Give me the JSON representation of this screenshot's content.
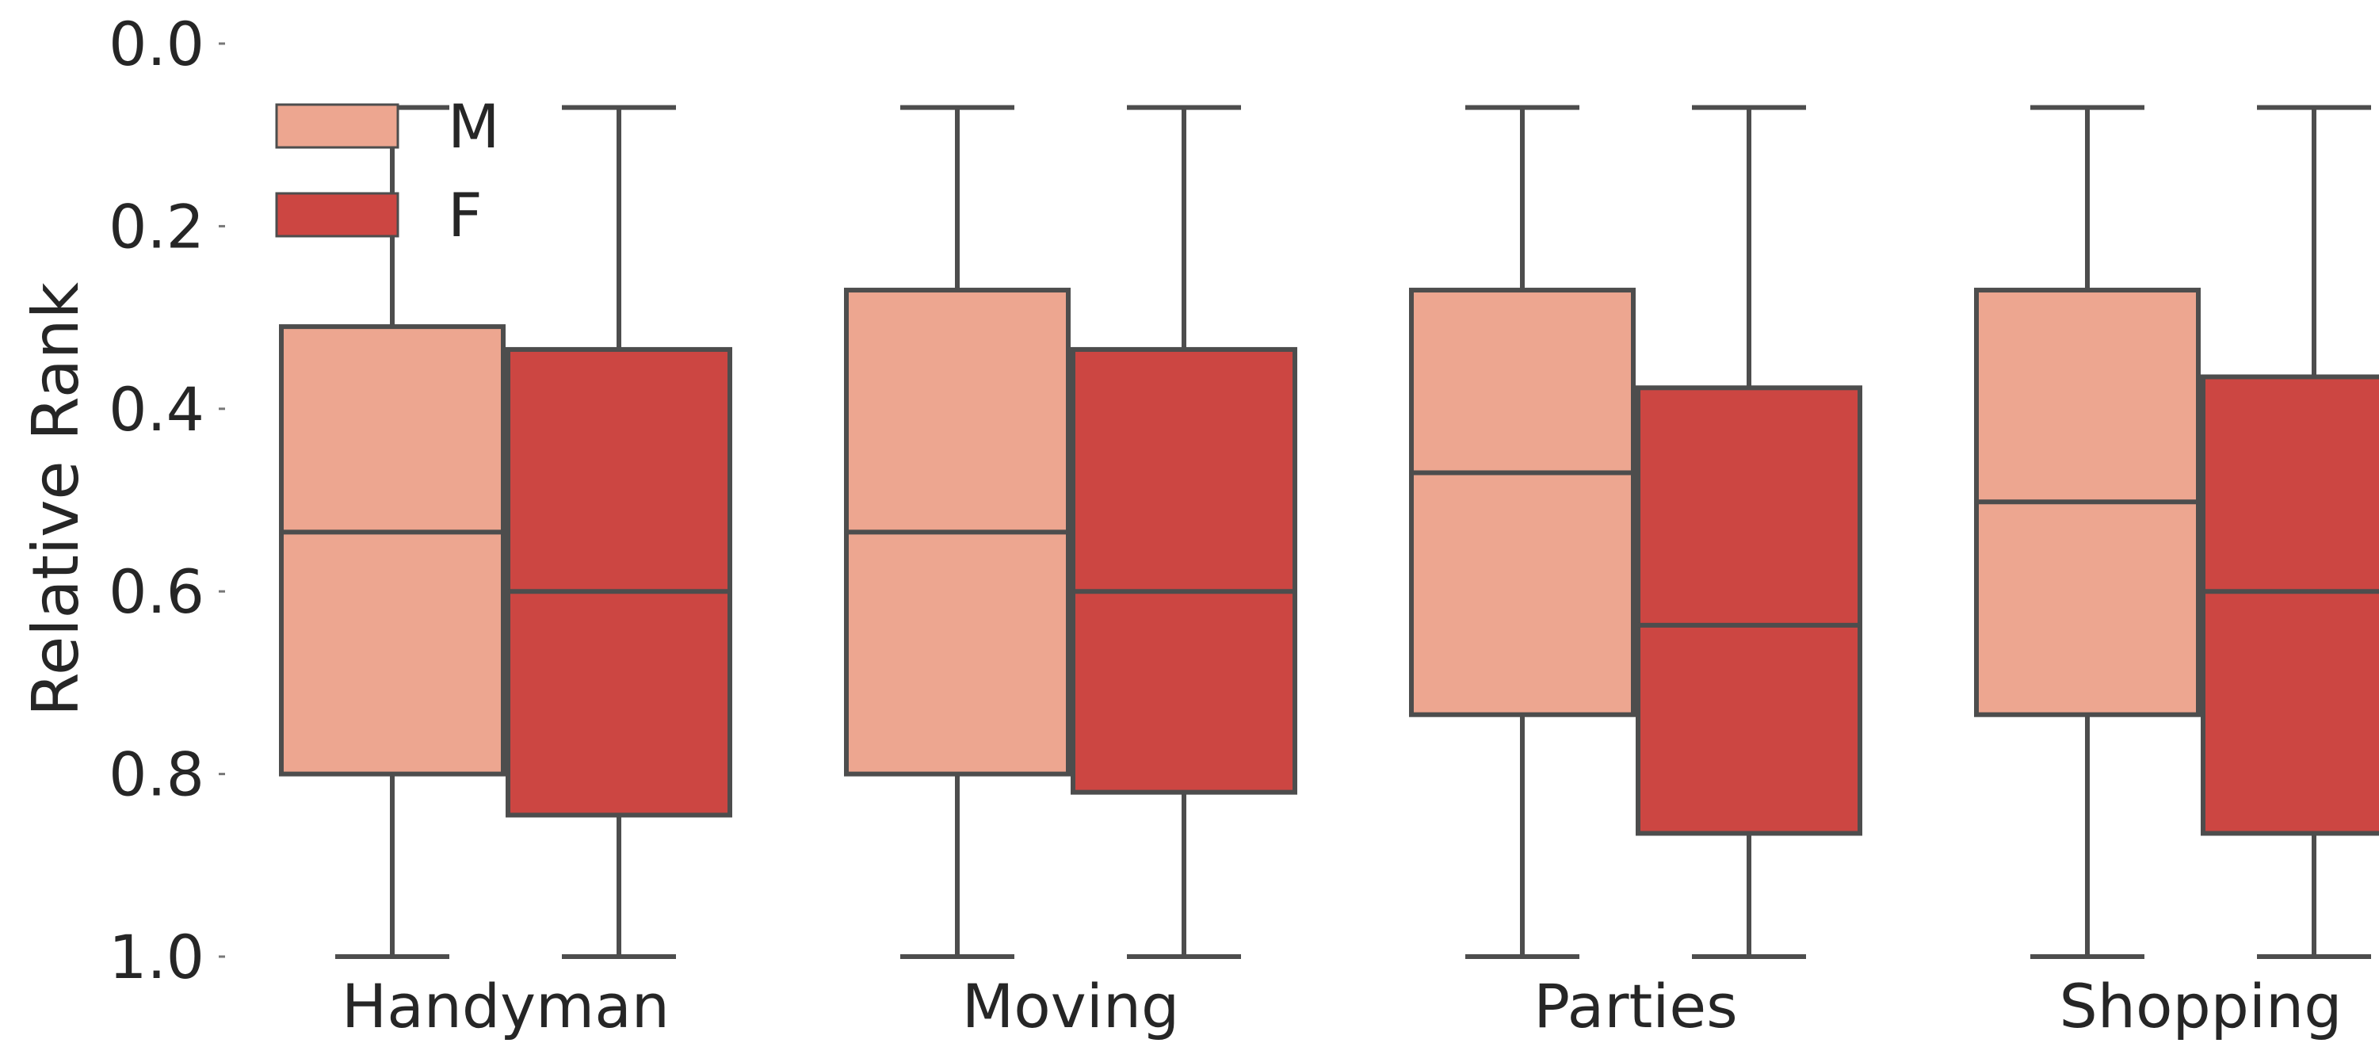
{
  "chart_data": {
    "type": "boxplot",
    "title": "",
    "xlabel": "",
    "ylabel": "Relative Rank",
    "ylim": [
      0.0,
      1.0
    ],
    "y_inverted": true,
    "yticks": [
      "0.0",
      "0.2",
      "0.4",
      "0.6",
      "0.8",
      "1.0"
    ],
    "categories": [
      "Handyman",
      "Moving",
      "Parties",
      "Shopping"
    ],
    "legend": {
      "position": "top-left",
      "entries": [
        "M",
        "F"
      ]
    },
    "grid": false,
    "series": [
      {
        "name": "M",
        "color": "#EDA690",
        "boxes": [
          {
            "whisker_low": 0.07,
            "q1": 0.31,
            "median": 0.535,
            "q3": 0.8,
            "whisker_high": 1.0
          },
          {
            "whisker_low": 0.07,
            "q1": 0.27,
            "median": 0.535,
            "q3": 0.8,
            "whisker_high": 1.0
          },
          {
            "whisker_low": 0.07,
            "q1": 0.27,
            "median": 0.47,
            "q3": 0.735,
            "whisker_high": 1.0
          },
          {
            "whisker_low": 0.07,
            "q1": 0.27,
            "median": 0.502,
            "q3": 0.735,
            "whisker_high": 1.0
          }
        ]
      },
      {
        "name": "F",
        "color": "#CC4642",
        "boxes": [
          {
            "whisker_low": 0.07,
            "q1": 0.335,
            "median": 0.6,
            "q3": 0.845,
            "whisker_high": 1.0
          },
          {
            "whisker_low": 0.07,
            "q1": 0.335,
            "median": 0.6,
            "q3": 0.82,
            "whisker_high": 1.0
          },
          {
            "whisker_low": 0.07,
            "q1": 0.377,
            "median": 0.637,
            "q3": 0.865,
            "whisker_high": 1.0
          },
          {
            "whisker_low": 0.07,
            "q1": 0.365,
            "median": 0.6,
            "q3": 0.865,
            "whisker_high": 1.0
          }
        ]
      }
    ],
    "line_color": "#4D4D4D"
  }
}
